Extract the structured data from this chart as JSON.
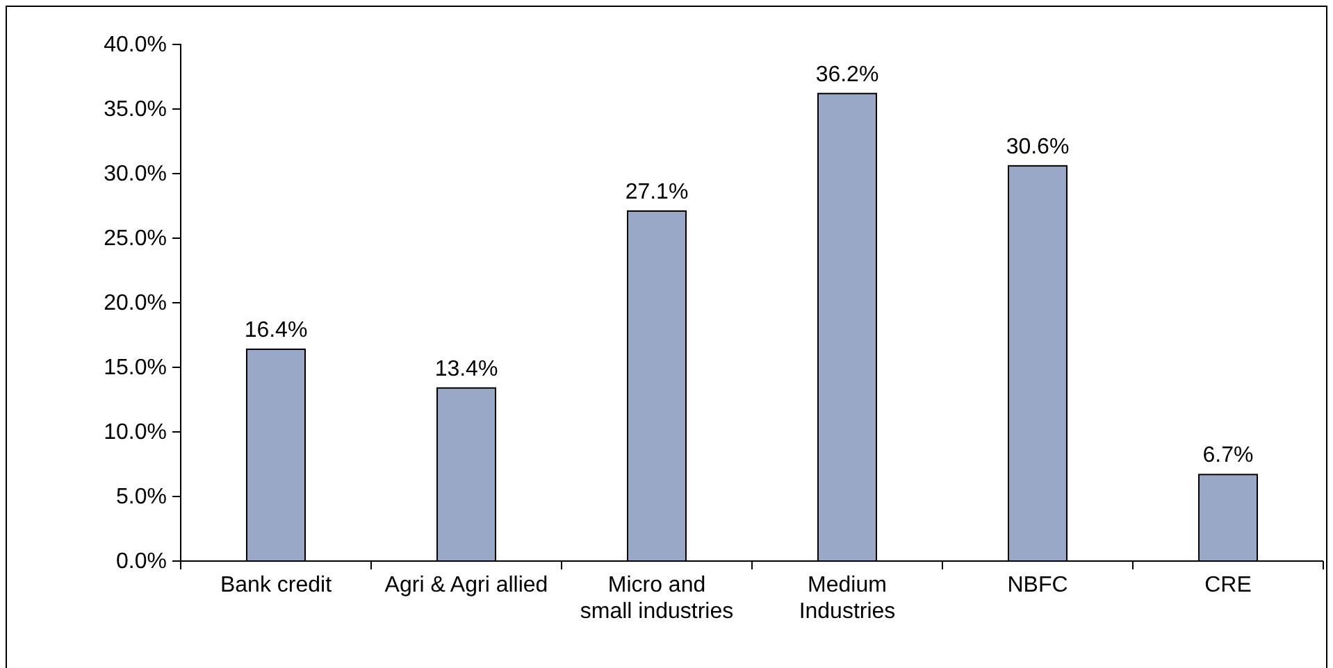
{
  "chart_data": {
    "type": "bar",
    "categories": [
      "Bank credit",
      "Agri & Agri allied",
      "Micro and small industries",
      "Medium Industries",
      "NBFC",
      "CRE"
    ],
    "values": [
      16.4,
      13.4,
      27.1,
      36.2,
      30.6,
      6.7
    ],
    "value_labels": [
      "16.4%",
      "13.4%",
      "27.1%",
      "36.2%",
      "30.6%",
      "6.7%"
    ],
    "color": "#99a8c7",
    "ylim": [
      0,
      40
    ],
    "yticks": [
      {
        "value": 0,
        "label": "0.0%"
      },
      {
        "value": 5,
        "label": "5.0%"
      },
      {
        "value": 10,
        "label": "10.0%"
      },
      {
        "value": 15,
        "label": "15.0%"
      },
      {
        "value": 20,
        "label": "20.0%"
      },
      {
        "value": 25,
        "label": "25.0%"
      },
      {
        "value": 30,
        "label": "30.0%"
      },
      {
        "value": 35,
        "label": "35.0%"
      },
      {
        "value": 40,
        "label": "40.0%"
      }
    ],
    "grid": false
  }
}
